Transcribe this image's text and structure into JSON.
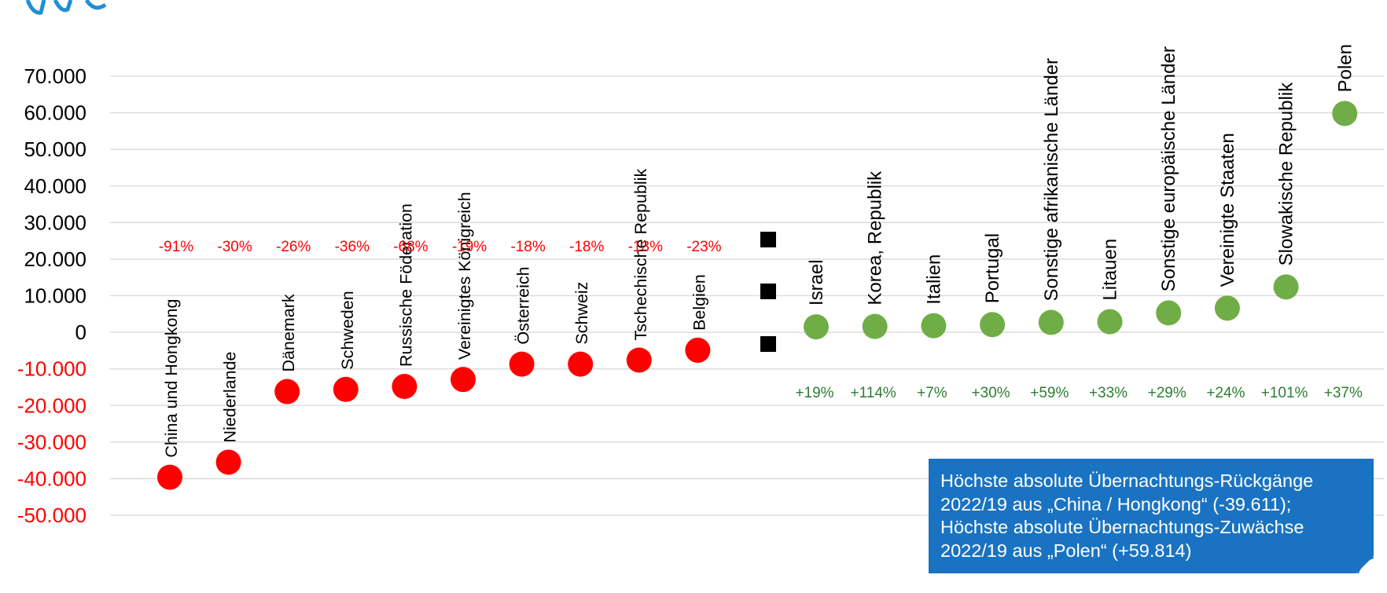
{
  "chart_data": {
    "type": "scatter",
    "ylim": [
      -50000,
      70000
    ],
    "y_ticks": [
      "70.000",
      "60.000",
      "50.000",
      "40.000",
      "30.000",
      "20.000",
      "10.000",
      "0",
      "-10.000",
      "-20.000",
      "-30.000",
      "-40.000",
      "-50.000"
    ],
    "y_tick_values": [
      70000,
      60000,
      50000,
      40000,
      30000,
      20000,
      10000,
      0,
      -10000,
      -20000,
      -30000,
      -40000,
      -50000
    ],
    "grid": true,
    "series": [
      {
        "color": "#ff0000",
        "points": [
          {
            "label": "China und Hongkong",
            "value": -39611,
            "change": "-91%"
          },
          {
            "label": "Niederlande",
            "value": -35500,
            "change": "-30%"
          },
          {
            "label": "Dänemark",
            "value": -16200,
            "change": "-26%"
          },
          {
            "label": "Schweden",
            "value": -15600,
            "change": "-36%"
          },
          {
            "label": "Russische Föderation",
            "value": -14800,
            "change": "-68%"
          },
          {
            "label": "Vereinigtes Königreich",
            "value": -12900,
            "change": "-19%"
          },
          {
            "label": "Österreich",
            "value": -8700,
            "change": "-18%"
          },
          {
            "label": "Schweiz",
            "value": -8700,
            "change": "-18%"
          },
          {
            "label": "Tschechische Republik",
            "value": -7600,
            "change": "-13%"
          },
          {
            "label": "Belgien",
            "value": -4900,
            "change": "-23%"
          }
        ]
      },
      {
        "color": "#70ad47",
        "points": [
          {
            "label": "Israel",
            "value": 1500,
            "change": "+19%"
          },
          {
            "label": "Korea, Republik",
            "value": 1600,
            "change": "+114%"
          },
          {
            "label": "Italien",
            "value": 1800,
            "change": "+7%"
          },
          {
            "label": "Portugal",
            "value": 2100,
            "change": "+30%"
          },
          {
            "label": "Sonstige afrikanische Länder",
            "value": 2700,
            "change": "+59%"
          },
          {
            "label": "Litauen",
            "value": 2900,
            "change": "+33%"
          },
          {
            "label": "Sonstige europäische Länder",
            "value": 5300,
            "change": "+29%"
          },
          {
            "label": "Vereinigte Staaten",
            "value": 6600,
            "change": "+24%"
          },
          {
            "label": "Slowakische  Republik",
            "value": 12400,
            "change": "+101%"
          },
          {
            "label": "Polen",
            "value": 59814,
            "change": "+37%"
          }
        ]
      }
    ],
    "separator_markers": 3
  },
  "note": {
    "lines": [
      "Höchste absolute Übernachtungs-Rückgänge",
      "2022/19 aus „China / Hongkong“ (-39.611);",
      "Höchste absolute Übernachtungs-Zuwächse",
      "2022/19 aus „Polen“ (+59.814)"
    ]
  },
  "colors": {
    "negative": "#ff0000",
    "positive_point": "#70ad47",
    "positive_text": "#2e7d32",
    "grid": "#d9d9d9",
    "note_bg": "#1a73c2"
  }
}
